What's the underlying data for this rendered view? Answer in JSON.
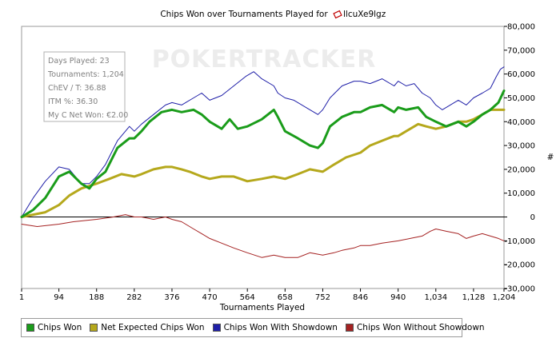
{
  "chart_data": {
    "type": "line",
    "title": "Chips Won over Tournaments Played for",
    "player_name": "llcuXe9lgz",
    "xlabel": "Tournaments Played",
    "ylabel": "#",
    "xlim": [
      1,
      1204
    ],
    "ylim": [
      -30000,
      80000
    ],
    "x_ticks": [
      "1",
      "94",
      "188",
      "282",
      "376",
      "470",
      "564",
      "658",
      "752",
      "846",
      "940",
      "1,034",
      "1,128",
      "1,204"
    ],
    "x_tick_values": [
      1,
      94,
      188,
      282,
      376,
      470,
      564,
      658,
      752,
      846,
      940,
      1034,
      1128,
      1204
    ],
    "y_ticks": [
      "80,000",
      "70,000",
      "60,000",
      "50,000",
      "40,000",
      "30,000",
      "20,000",
      "10,000",
      "0",
      "-10,000",
      "-20,000",
      "-30,000"
    ],
    "y_tick_values": [
      80000,
      70000,
      60000,
      50000,
      40000,
      30000,
      20000,
      10000,
      0,
      -10000,
      -20000,
      -30000
    ],
    "watermark": "POKERTRACKER",
    "info_box": [
      "Days Played: 23",
      "Tournaments: 1,204",
      "ChEV / T: 36.88",
      "ITM %: 36.30",
      "My C Net Won: €2.00"
    ],
    "series": [
      {
        "name": "Chips Won",
        "color": "#1a9c1a",
        "x": [
          1,
          30,
          60,
          94,
          120,
          150,
          170,
          188,
          210,
          240,
          270,
          282,
          300,
          320,
          350,
          376,
          400,
          430,
          450,
          470,
          500,
          520,
          540,
          564,
          600,
          630,
          640,
          658,
          690,
          720,
          740,
          752,
          770,
          800,
          830,
          846,
          870,
          900,
          930,
          940,
          960,
          990,
          1010,
          1034,
          1060,
          1090,
          1110,
          1128,
          1150,
          1170,
          1190,
          1204
        ],
        "values": [
          0,
          3000,
          8000,
          17000,
          19000,
          14000,
          12000,
          16000,
          19000,
          29000,
          33000,
          33000,
          36000,
          40000,
          44000,
          45000,
          44000,
          45000,
          43000,
          40000,
          37000,
          41000,
          37000,
          38000,
          41000,
          45000,
          42000,
          36000,
          33000,
          30000,
          29000,
          31000,
          38000,
          42000,
          44000,
          44000,
          46000,
          47000,
          44000,
          46000,
          45000,
          46000,
          42000,
          40000,
          38000,
          40000,
          38000,
          40000,
          43000,
          45000,
          48000,
          53000
        ]
      },
      {
        "name": "Net Expected Chips Won",
        "color": "#b5a81c",
        "x": [
          1,
          30,
          60,
          94,
          120,
          150,
          188,
          220,
          250,
          282,
          300,
          330,
          360,
          376,
          400,
          420,
          450,
          470,
          500,
          530,
          564,
          600,
          630,
          658,
          690,
          720,
          752,
          780,
          810,
          846,
          870,
          900,
          930,
          940,
          960,
          990,
          1010,
          1034,
          1060,
          1090,
          1110,
          1128,
          1150,
          1170,
          1190,
          1204
        ],
        "values": [
          0,
          1000,
          2000,
          5000,
          9000,
          12000,
          14000,
          16000,
          18000,
          17000,
          18000,
          20000,
          21000,
          21000,
          20000,
          19000,
          17000,
          16000,
          17000,
          17000,
          15000,
          16000,
          17000,
          16000,
          18000,
          20000,
          19000,
          22000,
          25000,
          27000,
          30000,
          32000,
          34000,
          34000,
          36000,
          39000,
          38000,
          37000,
          38000,
          40000,
          40000,
          41000,
          43000,
          45000,
          45000,
          45000
        ]
      },
      {
        "name": "Chips Won With Showdown",
        "color": "#1f1fa8",
        "x": [
          1,
          30,
          60,
          94,
          120,
          150,
          170,
          188,
          210,
          240,
          270,
          282,
          300,
          330,
          360,
          376,
          400,
          430,
          450,
          470,
          500,
          530,
          560,
          580,
          600,
          630,
          640,
          658,
          680,
          710,
          740,
          752,
          770,
          800,
          830,
          846,
          870,
          900,
          930,
          940,
          960,
          980,
          1000,
          1020,
          1034,
          1050,
          1070,
          1090,
          1110,
          1128,
          1150,
          1170,
          1185,
          1195,
          1204
        ],
        "values": [
          0,
          8000,
          15000,
          21000,
          20000,
          14000,
          14000,
          17000,
          22000,
          32000,
          38000,
          36000,
          39000,
          43000,
          47000,
          48000,
          47000,
          50000,
          52000,
          49000,
          51000,
          55000,
          59000,
          61000,
          58000,
          55000,
          52000,
          50000,
          49000,
          46000,
          43000,
          45000,
          50000,
          55000,
          57000,
          57000,
          56000,
          58000,
          55000,
          57000,
          55000,
          56000,
          52000,
          50000,
          47000,
          45000,
          47000,
          49000,
          47000,
          50000,
          52000,
          54000,
          59000,
          62000,
          63000
        ]
      },
      {
        "name": "Chips Won Without Showdown",
        "color": "#a52222",
        "x": [
          1,
          40,
          94,
          130,
          188,
          230,
          260,
          282,
          300,
          330,
          360,
          376,
          400,
          430,
          450,
          470,
          500,
          530,
          564,
          600,
          630,
          658,
          690,
          720,
          752,
          780,
          800,
          830,
          846,
          870,
          900,
          940,
          970,
          1000,
          1020,
          1034,
          1060,
          1090,
          1110,
          1128,
          1150,
          1170,
          1190,
          1204
        ],
        "values": [
          -3000,
          -4000,
          -3000,
          -2000,
          -1000,
          0,
          1000,
          0,
          0,
          -1000,
          0,
          -1000,
          -2000,
          -5000,
          -7000,
          -9000,
          -11000,
          -13000,
          -15000,
          -17000,
          -16000,
          -17000,
          -17000,
          -15000,
          -16000,
          -15000,
          -14000,
          -13000,
          -12000,
          -12000,
          -11000,
          -10000,
          -9000,
          -8000,
          -6000,
          -5000,
          -6000,
          -7000,
          -9000,
          -8000,
          -7000,
          -8000,
          -9000,
          -10000
        ]
      }
    ]
  }
}
